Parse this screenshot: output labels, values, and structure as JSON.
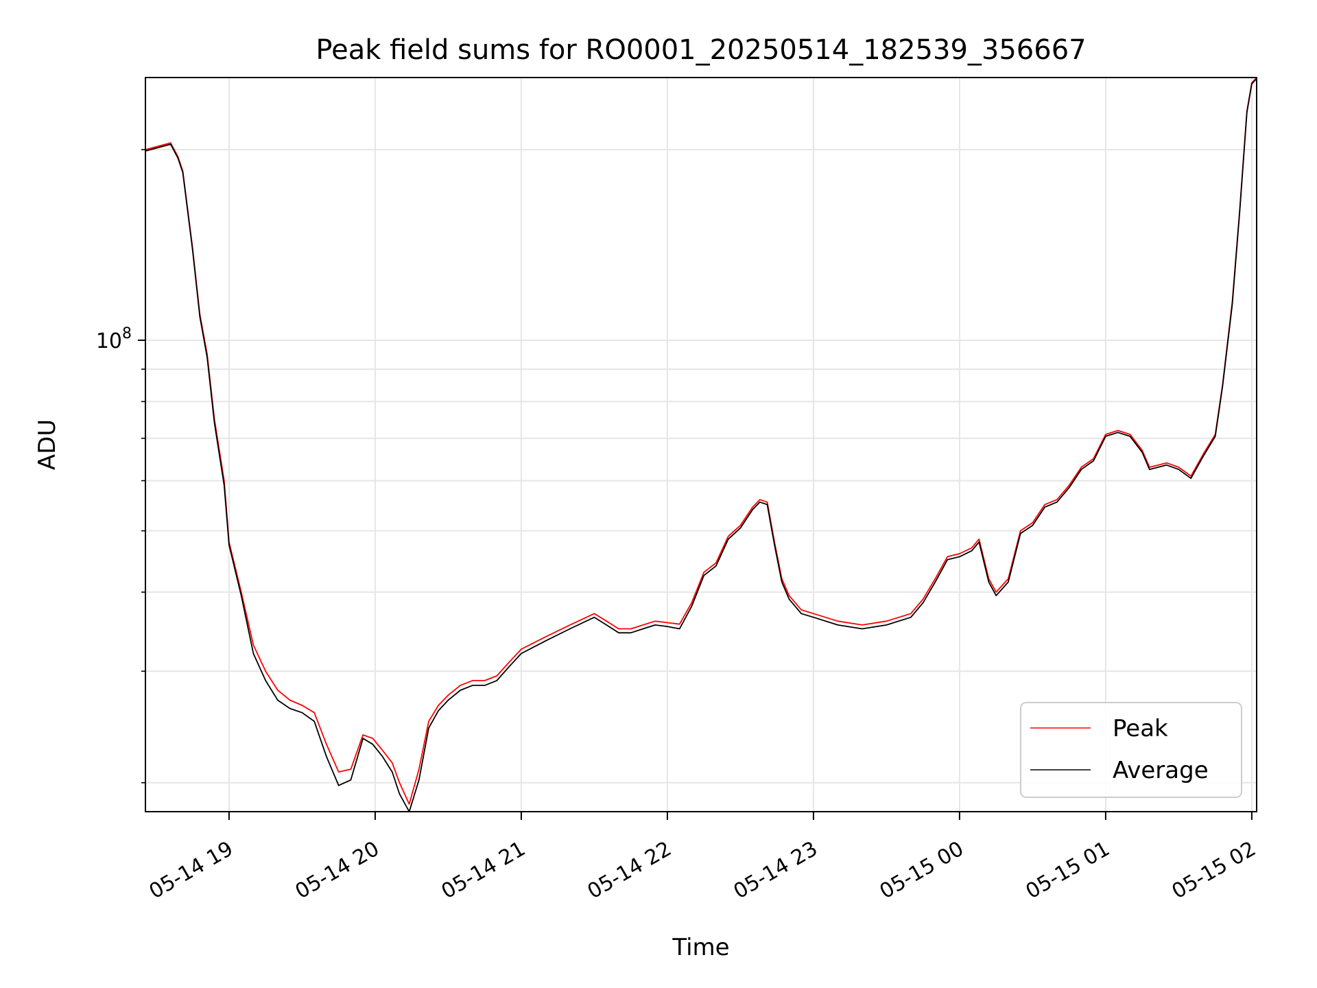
{
  "chart_data": {
    "type": "line",
    "title": "Peak field sums for RO0001_20250514_182539_356667",
    "xlabel": "Time",
    "ylabel": "ADU",
    "yscale": "log",
    "grid": true,
    "legend_position": "lower-right",
    "xlim": [
      "2025-05-14 18:25:39",
      "2025-05-15 02:02:00"
    ],
    "ylim": [
      18000000,
      260000000
    ],
    "x_ticks": [
      "05-14 19",
      "05-14 20",
      "05-14 21",
      "05-14 22",
      "05-14 23",
      "05-15 00",
      "05-15 01",
      "05-15 02"
    ],
    "x_tick_times": [
      "2025-05-14 19:00",
      "2025-05-14 20:00",
      "2025-05-14 21:00",
      "2025-05-14 22:00",
      "2025-05-14 23:00",
      "2025-05-15 00:00",
      "2025-05-15 01:00",
      "2025-05-15 02:00"
    ],
    "y_major_ticks": [
      {
        "base": "10",
        "exp": "8",
        "value": 100000000
      }
    ],
    "y_minor_ticks": [
      20000000,
      30000000,
      40000000,
      50000000,
      60000000,
      70000000,
      80000000,
      90000000,
      200000000
    ],
    "series": [
      {
        "name": "Peak",
        "color": "#ff0000",
        "points": [
          [
            "2025-05-14 18:25:39",
            200000000
          ],
          [
            "2025-05-14 18:36:00",
            205000000
          ],
          [
            "2025-05-14 18:39:00",
            195000000
          ],
          [
            "2025-05-14 18:41:00",
            185000000
          ],
          [
            "2025-05-14 18:45:00",
            140000000
          ],
          [
            "2025-05-14 18:48:00",
            110000000
          ],
          [
            "2025-05-14 18:51:00",
            95000000
          ],
          [
            "2025-05-14 18:54:00",
            75000000
          ],
          [
            "2025-05-14 18:58:00",
            60000000
          ],
          [
            "2025-05-14 19:00:00",
            48000000
          ],
          [
            "2025-05-14 19:05:00",
            40000000
          ],
          [
            "2025-05-14 19:10:00",
            33000000
          ],
          [
            "2025-05-14 19:15:00",
            30000000
          ],
          [
            "2025-05-14 19:20:00",
            28000000
          ],
          [
            "2025-05-14 19:25:00",
            27000000
          ],
          [
            "2025-05-14 19:30:00",
            26500000
          ],
          [
            "2025-05-14 19:35:00",
            25800000
          ],
          [
            "2025-05-14 19:40:00",
            23000000
          ],
          [
            "2025-05-14 19:45:00",
            20800000
          ],
          [
            "2025-05-14 19:50:00",
            21000000
          ],
          [
            "2025-05-14 19:55:00",
            23800000
          ],
          [
            "2025-05-14 19:59:00",
            23500000
          ],
          [
            "2025-05-14 20:03:00",
            22500000
          ],
          [
            "2025-05-14 20:07:00",
            21500000
          ],
          [
            "2025-05-14 20:10:00",
            20000000
          ],
          [
            "2025-05-14 20:14:00",
            18500000
          ],
          [
            "2025-05-14 20:18:00",
            21000000
          ],
          [
            "2025-05-14 20:22:00",
            25000000
          ],
          [
            "2025-05-14 20:26:00",
            26500000
          ],
          [
            "2025-05-14 20:30:00",
            27500000
          ],
          [
            "2025-05-14 20:35:00",
            28500000
          ],
          [
            "2025-05-14 20:40:00",
            29000000
          ],
          [
            "2025-05-14 20:45:00",
            29000000
          ],
          [
            "2025-05-14 20:50:00",
            29500000
          ],
          [
            "2025-05-14 20:55:00",
            31000000
          ],
          [
            "2025-05-14 21:00:00",
            32500000
          ],
          [
            "2025-05-14 21:10:00",
            34000000
          ],
          [
            "2025-05-14 21:20:00",
            35500000
          ],
          [
            "2025-05-14 21:30:00",
            37000000
          ],
          [
            "2025-05-14 21:35:00",
            36000000
          ],
          [
            "2025-05-14 21:40:00",
            35000000
          ],
          [
            "2025-05-14 21:45:00",
            35000000
          ],
          [
            "2025-05-14 21:50:00",
            35500000
          ],
          [
            "2025-05-14 21:55:00",
            36000000
          ],
          [
            "2025-05-14 22:00:00",
            35800000
          ],
          [
            "2025-05-14 22:05:00",
            35600000
          ],
          [
            "2025-05-14 22:10:00",
            38500000
          ],
          [
            "2025-05-14 22:15:00",
            43000000
          ],
          [
            "2025-05-14 22:20:00",
            44500000
          ],
          [
            "2025-05-14 22:25:00",
            49000000
          ],
          [
            "2025-05-14 22:30:00",
            51000000
          ],
          [
            "2025-05-14 22:35:00",
            54500000
          ],
          [
            "2025-05-14 22:38:00",
            56000000
          ],
          [
            "2025-05-14 22:41:00",
            55500000
          ],
          [
            "2025-05-14 22:44:00",
            48000000
          ],
          [
            "2025-05-14 22:47:00",
            42000000
          ],
          [
            "2025-05-14 22:50:00",
            39500000
          ],
          [
            "2025-05-14 22:55:00",
            37500000
          ],
          [
            "2025-05-14 23:00:00",
            37000000
          ],
          [
            "2025-05-14 23:10:00",
            36000000
          ],
          [
            "2025-05-14 23:20:00",
            35500000
          ],
          [
            "2025-05-14 23:30:00",
            36000000
          ],
          [
            "2025-05-14 23:40:00",
            37000000
          ],
          [
            "2025-05-14 23:45:00",
            39000000
          ],
          [
            "2025-05-14 23:50:00",
            42000000
          ],
          [
            "2025-05-14 23:55:00",
            45500000
          ],
          [
            "2025-05-15 00:00:00",
            46000000
          ],
          [
            "2025-05-15 00:05:00",
            47000000
          ],
          [
            "2025-05-15 00:08:00",
            48500000
          ],
          [
            "2025-05-15 00:12:00",
            42000000
          ],
          [
            "2025-05-15 00:15:00",
            40000000
          ],
          [
            "2025-05-15 00:20:00",
            42000000
          ],
          [
            "2025-05-15 00:25:00",
            50000000
          ],
          [
            "2025-05-15 00:30:00",
            51500000
          ],
          [
            "2025-05-15 00:35:00",
            55000000
          ],
          [
            "2025-05-15 00:40:00",
            56000000
          ],
          [
            "2025-05-15 00:45:00",
            59000000
          ],
          [
            "2025-05-15 00:50:00",
            63000000
          ],
          [
            "2025-05-15 00:55:00",
            65000000
          ],
          [
            "2025-05-15 01:00:00",
            71000000
          ],
          [
            "2025-05-15 01:05:00",
            72000000
          ],
          [
            "2025-05-15 01:10:00",
            71000000
          ],
          [
            "2025-05-15 01:15:00",
            67000000
          ],
          [
            "2025-05-15 01:18:00",
            63000000
          ],
          [
            "2025-05-15 01:25:00",
            64000000
          ],
          [
            "2025-05-15 01:30:00",
            63000000
          ],
          [
            "2025-05-15 01:35:00",
            61000000
          ],
          [
            "2025-05-15 01:40:00",
            66000000
          ],
          [
            "2025-05-15 01:45:00",
            71000000
          ],
          [
            "2025-05-15 01:48:00",
            85000000
          ],
          [
            "2025-05-15 01:52:00",
            115000000
          ],
          [
            "2025-05-15 01:55:00",
            160000000
          ],
          [
            "2025-05-15 01:58:00",
            230000000
          ],
          [
            "2025-05-15 02:00:00",
            255000000
          ],
          [
            "2025-05-15 02:02:00",
            260000000
          ]
        ]
      },
      {
        "name": "Average",
        "color": "#000000",
        "points": [
          [
            "2025-05-14 18:25:39",
            199000000
          ],
          [
            "2025-05-14 18:36:00",
            204000000
          ],
          [
            "2025-05-14 18:39:00",
            194000000
          ],
          [
            "2025-05-14 18:41:00",
            184000000
          ],
          [
            "2025-05-14 18:45:00",
            139000000
          ],
          [
            "2025-05-14 18:48:00",
            109000000
          ],
          [
            "2025-05-14 18:51:00",
            94000000
          ],
          [
            "2025-05-14 18:54:00",
            74000000
          ],
          [
            "2025-05-14 18:58:00",
            59000000
          ],
          [
            "2025-05-14 19:00:00",
            47500000
          ],
          [
            "2025-05-14 19:05:00",
            39500000
          ],
          [
            "2025-05-14 19:10:00",
            32000000
          ],
          [
            "2025-05-14 19:15:00",
            29000000
          ],
          [
            "2025-05-14 19:20:00",
            27000000
          ],
          [
            "2025-05-14 19:25:00",
            26200000
          ],
          [
            "2025-05-14 19:30:00",
            25800000
          ],
          [
            "2025-05-14 19:35:00",
            25000000
          ],
          [
            "2025-05-14 19:40:00",
            22000000
          ],
          [
            "2025-05-14 19:45:00",
            19800000
          ],
          [
            "2025-05-14 19:50:00",
            20200000
          ],
          [
            "2025-05-14 19:55:00",
            23500000
          ],
          [
            "2025-05-14 19:59:00",
            23000000
          ],
          [
            "2025-05-14 20:03:00",
            22000000
          ],
          [
            "2025-05-14 20:07:00",
            20800000
          ],
          [
            "2025-05-14 20:10:00",
            19200000
          ],
          [
            "2025-05-14 20:14:00",
            17800000
          ],
          [
            "2025-05-14 20:18:00",
            20200000
          ],
          [
            "2025-05-14 20:22:00",
            24400000
          ],
          [
            "2025-05-14 20:26:00",
            26000000
          ],
          [
            "2025-05-14 20:30:00",
            27000000
          ],
          [
            "2025-05-14 20:35:00",
            28000000
          ],
          [
            "2025-05-14 20:40:00",
            28500000
          ],
          [
            "2025-05-14 20:45:00",
            28500000
          ],
          [
            "2025-05-14 20:50:00",
            29000000
          ],
          [
            "2025-05-14 20:55:00",
            30500000
          ],
          [
            "2025-05-14 21:00:00",
            32000000
          ],
          [
            "2025-05-14 21:10:00",
            33500000
          ],
          [
            "2025-05-14 21:20:00",
            35000000
          ],
          [
            "2025-05-14 21:30:00",
            36500000
          ],
          [
            "2025-05-14 21:35:00",
            35500000
          ],
          [
            "2025-05-14 21:40:00",
            34500000
          ],
          [
            "2025-05-14 21:45:00",
            34500000
          ],
          [
            "2025-05-14 21:50:00",
            35000000
          ],
          [
            "2025-05-14 21:55:00",
            35500000
          ],
          [
            "2025-05-14 22:00:00",
            35300000
          ],
          [
            "2025-05-14 22:05:00",
            35000000
          ],
          [
            "2025-05-14 22:10:00",
            38000000
          ],
          [
            "2025-05-14 22:15:00",
            42500000
          ],
          [
            "2025-05-14 22:20:00",
            44000000
          ],
          [
            "2025-05-14 22:25:00",
            48500000
          ],
          [
            "2025-05-14 22:30:00",
            50500000
          ],
          [
            "2025-05-14 22:35:00",
            54000000
          ],
          [
            "2025-05-14 22:38:00",
            55500000
          ],
          [
            "2025-05-14 22:41:00",
            55000000
          ],
          [
            "2025-05-14 22:44:00",
            47500000
          ],
          [
            "2025-05-14 22:47:00",
            41500000
          ],
          [
            "2025-05-14 22:50:00",
            39000000
          ],
          [
            "2025-05-14 22:55:00",
            37000000
          ],
          [
            "2025-05-14 23:00:00",
            36500000
          ],
          [
            "2025-05-14 23:10:00",
            35500000
          ],
          [
            "2025-05-14 23:20:00",
            35000000
          ],
          [
            "2025-05-14 23:30:00",
            35500000
          ],
          [
            "2025-05-14 23:40:00",
            36500000
          ],
          [
            "2025-05-14 23:45:00",
            38500000
          ],
          [
            "2025-05-14 23:50:00",
            41500000
          ],
          [
            "2025-05-14 23:55:00",
            45000000
          ],
          [
            "2025-05-15 00:00:00",
            45500000
          ],
          [
            "2025-05-15 00:05:00",
            46500000
          ],
          [
            "2025-05-15 00:08:00",
            48000000
          ],
          [
            "2025-05-15 00:12:00",
            41500000
          ],
          [
            "2025-05-15 00:15:00",
            39500000
          ],
          [
            "2025-05-15 00:20:00",
            41500000
          ],
          [
            "2025-05-15 00:25:00",
            49500000
          ],
          [
            "2025-05-15 00:30:00",
            51000000
          ],
          [
            "2025-05-15 00:35:00",
            54500000
          ],
          [
            "2025-05-15 00:40:00",
            55500000
          ],
          [
            "2025-05-15 00:45:00",
            58500000
          ],
          [
            "2025-05-15 00:50:00",
            62500000
          ],
          [
            "2025-05-15 00:55:00",
            64500000
          ],
          [
            "2025-05-15 01:00:00",
            70500000
          ],
          [
            "2025-05-15 01:05:00",
            71500000
          ],
          [
            "2025-05-15 01:10:00",
            70500000
          ],
          [
            "2025-05-15 01:15:00",
            66500000
          ],
          [
            "2025-05-15 01:18:00",
            62500000
          ],
          [
            "2025-05-15 01:25:00",
            63500000
          ],
          [
            "2025-05-15 01:30:00",
            62500000
          ],
          [
            "2025-05-15 01:35:00",
            60500000
          ],
          [
            "2025-05-15 01:40:00",
            65500000
          ],
          [
            "2025-05-15 01:45:00",
            70500000
          ],
          [
            "2025-05-15 01:48:00",
            84500000
          ],
          [
            "2025-05-15 01:52:00",
            114000000
          ],
          [
            "2025-05-15 01:55:00",
            159000000
          ],
          [
            "2025-05-15 01:58:00",
            229000000
          ],
          [
            "2025-05-15 02:00:00",
            254000000
          ],
          [
            "2025-05-15 02:02:00",
            259000000
          ]
        ]
      }
    ]
  }
}
